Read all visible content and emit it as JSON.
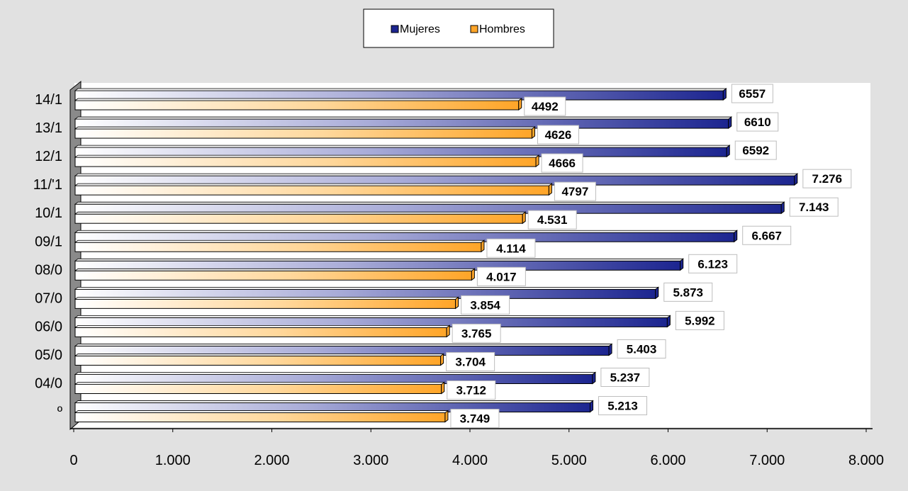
{
  "chart_data": {
    "type": "bar",
    "orientation": "horizontal",
    "categories": [
      "14/1",
      "13/1",
      "12/1",
      "11/'1",
      "10/1",
      "09/1",
      "08/0",
      "07/0",
      "06/0",
      "05/0",
      "04/0",
      "º"
    ],
    "series": [
      {
        "name": "Mujeres",
        "values": [
          6557,
          6610,
          6592,
          7276,
          7143,
          6667,
          6123,
          5873,
          5992,
          5403,
          5237,
          5213
        ],
        "data_labels": [
          "6557",
          "6610",
          "6592",
          "7.276",
          "7.143",
          "6.667",
          "6.123",
          "5.873",
          "5.992",
          "5.403",
          "5.237",
          "5.213"
        ]
      },
      {
        "name": "Hombres",
        "values": [
          4492,
          4626,
          4666,
          4797,
          4531,
          4114,
          4017,
          3854,
          3765,
          3704,
          3712,
          3749
        ],
        "data_labels": [
          "4492",
          "4626",
          "4666",
          "4797",
          "4.531",
          "4.114",
          "4.017",
          "3.854",
          "3.765",
          "3.704",
          "3.712",
          "3.749"
        ]
      }
    ],
    "x_tick_labels": [
      "0",
      "1.000",
      "2.000",
      "3.000",
      "4.000",
      "5.000",
      "6.000",
      "7.000",
      "8.000"
    ],
    "xlim": [
      0,
      8000
    ],
    "grid": false,
    "legend_position": "top-center",
    "colors": {
      "Mujeres": "#1c2590",
      "Hombres": "#ffa528",
      "page_background": "#e1e1e1",
      "plot_background": "#ffffff"
    }
  }
}
